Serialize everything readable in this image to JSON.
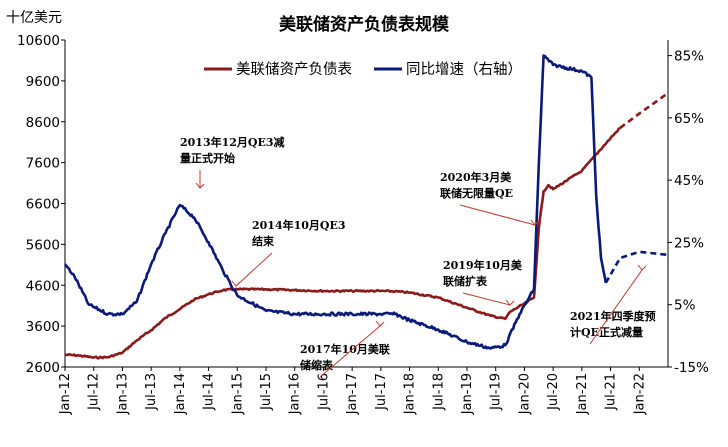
{
  "chart_data": {
    "type": "line",
    "title": "美联储资产负债表规模",
    "left_unit": "十亿美元",
    "y_left": {
      "min": 2600,
      "max": 10600,
      "ticks": [
        "10600",
        "9600",
        "8600",
        "7600",
        "6600",
        "5600",
        "4600",
        "3600",
        "2600"
      ]
    },
    "y_right": {
      "min": -15,
      "max": 90,
      "ticks": [
        "85%",
        "65%",
        "45%",
        "25%",
        "5%",
        "-15%"
      ]
    },
    "x_ticks": [
      "Jan-12",
      "Jul-12",
      "Jan-13",
      "Jul-13",
      "Jan-14",
      "Jul-14",
      "Jan-15",
      "Jul-15",
      "Jan-16",
      "Jul-16",
      "Jan-17",
      "Jul-17",
      "Jan-18",
      "Jul-18",
      "Jan-19",
      "Jul-19",
      "Jan-20",
      "Jul-20",
      "Jan-21",
      "Jul-21",
      "Jan-22"
    ],
    "x_range": [
      "2012-01",
      "2022-07"
    ],
    "grid": false,
    "legend": "top",
    "series": [
      {
        "name": "美联储资产负债表",
        "axis": "left",
        "color": "#8b1a1a",
        "points": [
          [
            "2012-01",
            2900
          ],
          [
            "2012-04",
            2880
          ],
          [
            "2012-07",
            2830
          ],
          [
            "2012-10",
            2840
          ],
          [
            "2013-01",
            2950
          ],
          [
            "2013-04",
            3250
          ],
          [
            "2013-07",
            3500
          ],
          [
            "2013-10",
            3800
          ],
          [
            "2014-01",
            4020
          ],
          [
            "2014-04",
            4250
          ],
          [
            "2014-07",
            4380
          ],
          [
            "2014-10",
            4480
          ],
          [
            "2015-01",
            4500
          ],
          [
            "2015-07",
            4500
          ],
          [
            "2016-01",
            4480
          ],
          [
            "2016-07",
            4460
          ],
          [
            "2017-01",
            4460
          ],
          [
            "2017-07",
            4460
          ],
          [
            "2017-10",
            4450
          ],
          [
            "2018-01",
            4420
          ],
          [
            "2018-07",
            4300
          ],
          [
            "2019-01",
            4050
          ],
          [
            "2019-06",
            3850
          ],
          [
            "2019-09",
            3780
          ],
          [
            "2019-10",
            3950
          ],
          [
            "2020-01",
            4150
          ],
          [
            "2020-03",
            4300
          ],
          [
            "2020-04",
            6000
          ],
          [
            "2020-05",
            6900
          ],
          [
            "2020-06",
            7050
          ],
          [
            "2020-07",
            6950
          ],
          [
            "2021-01",
            7400
          ],
          [
            "2021-07",
            8200
          ],
          [
            "2021-09",
            8450
          ]
        ],
        "forecast": [
          [
            "2021-09",
            8450
          ],
          [
            "2022-01",
            8800
          ],
          [
            "2022-07",
            9300
          ]
        ]
      },
      {
        "name": "同比增速（右轴）",
        "axis": "right",
        "color": "#0a1a7a",
        "points": [
          [
            "2012-01",
            18
          ],
          [
            "2012-03",
            14
          ],
          [
            "2012-06",
            5
          ],
          [
            "2012-10",
            2
          ],
          [
            "2013-01",
            2
          ],
          [
            "2013-04",
            6
          ],
          [
            "2013-07",
            18
          ],
          [
            "2013-10",
            28
          ],
          [
            "2014-01",
            37
          ],
          [
            "2014-04",
            33
          ],
          [
            "2014-07",
            25
          ],
          [
            "2014-10",
            16
          ],
          [
            "2015-01",
            8
          ],
          [
            "2015-07",
            3
          ],
          [
            "2016-01",
            2
          ],
          [
            "2016-07",
            2
          ],
          [
            "2017-01",
            2
          ],
          [
            "2017-07",
            2
          ],
          [
            "2017-10",
            2
          ],
          [
            "2018-01",
            0
          ],
          [
            "2018-07",
            -3
          ],
          [
            "2019-01",
            -7
          ],
          [
            "2019-06",
            -9
          ],
          [
            "2019-09",
            -8
          ],
          [
            "2019-12",
            2
          ],
          [
            "2020-03",
            10
          ],
          [
            "2020-04",
            50
          ],
          [
            "2020-05",
            85
          ],
          [
            "2020-07",
            82
          ],
          [
            "2021-01",
            80
          ],
          [
            "2021-03",
            78
          ],
          [
            "2021-04",
            40
          ],
          [
            "2021-05",
            20
          ],
          [
            "2021-06",
            12
          ]
        ],
        "forecast": [
          [
            "2021-06",
            12
          ],
          [
            "2021-09",
            20
          ],
          [
            "2022-01",
            22
          ],
          [
            "2022-07",
            21
          ]
        ]
      }
    ],
    "annotations": [
      {
        "lines": [
          "2013年12月QE3减",
          "量正式开始"
        ],
        "target": [
          "2013-12",
          4000,
          "left"
        ]
      },
      {
        "lines": [
          "2014年10月QE3",
          "结束"
        ],
        "target": [
          "2014-10",
          4500,
          "left"
        ]
      },
      {
        "lines": [
          "2017年10月美联",
          "储缩表"
        ],
        "target": [
          "2017-10",
          3700,
          "left"
        ]
      },
      {
        "lines": [
          "2019年10月美",
          "联储扩表"
        ],
        "target": [
          "2019-10",
          3900,
          "left"
        ]
      },
      {
        "lines": [
          "2020年3月美",
          "联储无限量QE"
        ],
        "target": [
          "2020-03",
          4500,
          "left"
        ]
      },
      {
        "lines": [
          "2021年四季度预",
          "计QE正式减量"
        ],
        "target": [
          "2021-11",
          4700,
          "left"
        ]
      }
    ]
  }
}
